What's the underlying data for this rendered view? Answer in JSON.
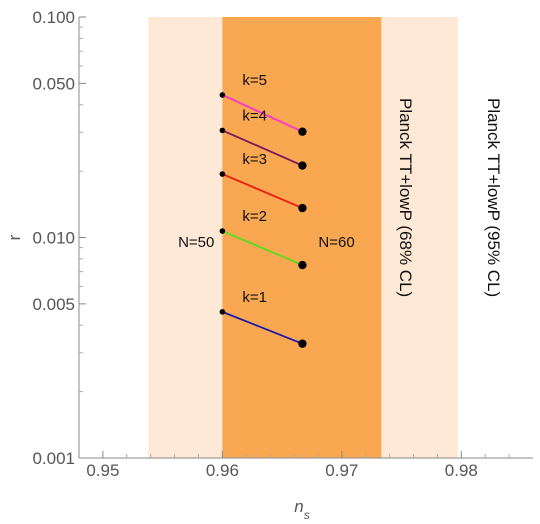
{
  "chart_data": {
    "type": "scatter",
    "xlabel": "n",
    "xlabel_sub": "s",
    "ylabel": "r",
    "xlim": [
      0.948,
      0.986
    ],
    "ylim": [
      0.001,
      0.1
    ],
    "y_scale": "log",
    "x_ticks": [
      {
        "value": 0.95,
        "label": "0.95"
      },
      {
        "value": 0.96,
        "label": "0.96"
      },
      {
        "value": 0.97,
        "label": "0.97"
      },
      {
        "value": 0.98,
        "label": "0.98"
      }
    ],
    "y_ticks": [
      {
        "value": 0.001,
        "label": "0.001"
      },
      {
        "value": 0.005,
        "label": "0.005"
      },
      {
        "value": 0.01,
        "label": "0.010"
      },
      {
        "value": 0.05,
        "label": "0.050"
      },
      {
        "value": 0.1,
        "label": "0.100"
      }
    ],
    "bands": [
      {
        "name": "Planck TT+lowP (95% CL)",
        "x_range": [
          0.9538,
          0.9797
        ],
        "color": "#fde9d6"
      },
      {
        "name": "Planck TT+lowP (68% CL)",
        "x_range": [
          0.96,
          0.9733
        ],
        "color": "#f9a751"
      }
    ],
    "series": [
      {
        "name": "k=1",
        "color": "#1a1aa8",
        "x": [
          0.96,
          0.9667
        ],
        "y": [
          0.0046,
          0.0033
        ]
      },
      {
        "name": "k=2",
        "color": "#55dd22",
        "x": [
          0.96,
          0.9667
        ],
        "y": [
          0.0107,
          0.0075
        ]
      },
      {
        "name": "k=3",
        "color": "#ee1a10",
        "x": [
          0.96,
          0.9667
        ],
        "y": [
          0.0194,
          0.0136
        ]
      },
      {
        "name": "k=4",
        "color": "#7a1a5a",
        "x": [
          0.96,
          0.9667
        ],
        "y": [
          0.0306,
          0.0212
        ]
      },
      {
        "name": "k=5",
        "color": "#ff33cc",
        "x": [
          0.96,
          0.9667
        ],
        "y": [
          0.0443,
          0.0302
        ]
      }
    ],
    "annotations": {
      "n50": "N=50",
      "n60": "N=60"
    }
  }
}
